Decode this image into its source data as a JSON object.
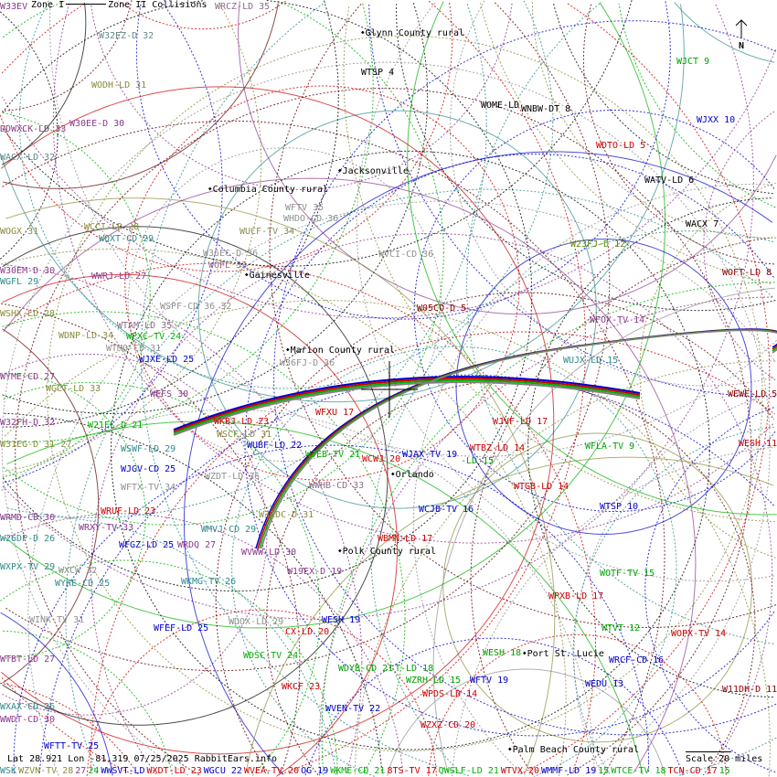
{
  "legend": {
    "zone1": "Zone I",
    "zone2": "Zone II Collisions"
  },
  "north": {
    "label": "N",
    "icon": "north-arrow-icon"
  },
  "readout": "Lat 28.921 Lon -81.319 07/25/2025 RabbitEars.info",
  "scale": "Scale 20 miles",
  "cities": [
    "Glynn County rural",
    "Jacksonville",
    "Columbia County rural",
    "Gainesville",
    "Marion County rural",
    "Orlando",
    "Polk County rural",
    "Port St. Lucie",
    "Palm Beach County rural"
  ],
  "stations": [
    {
      "text": "W33EV",
      "color": "#8b3a8b"
    },
    {
      "text": "WRCZ-LD 35",
      "color": "#8b6b8b"
    },
    {
      "text": "W32EZ-D 32",
      "color": "#5f8a8a"
    },
    {
      "text": "WODH-LD 31",
      "color": "#8b8b3c"
    },
    {
      "text": "W30EE-D 30",
      "color": "#8b3a8b"
    },
    {
      "text": "DDWXCK-LD 33",
      "color": "#8b3a8b"
    },
    {
      "text": "WACX-LD 32",
      "color": "#5f8a8a"
    },
    {
      "text": "WTSP 4",
      "color": "#000000"
    },
    {
      "text": "WOME-LD",
      "color": "#000000"
    },
    {
      "text": "WNBW-DT 8",
      "color": "#000000"
    },
    {
      "text": "WJCT 9",
      "color": "#00a000"
    },
    {
      "text": "WJXX 10",
      "color": "#0000cc"
    },
    {
      "text": "WDTO-LD 5",
      "color": "#cc0000"
    },
    {
      "text": "WATV-LD 6",
      "color": "#000000"
    },
    {
      "text": "WACX 7",
      "color": "#000000"
    },
    {
      "text": "WOFT-LD 8",
      "color": "#8b0000"
    },
    {
      "text": "W23FJ-D 12",
      "color": "#5a8a00"
    },
    {
      "text": "WFTV 35",
      "color": "#909090"
    },
    {
      "text": "WHDO-CD 36",
      "color": "#909090"
    },
    {
      "text": "WUCF-TV 34",
      "color": "#8b8b5c"
    },
    {
      "text": "WVCI-CD 36",
      "color": "#909090"
    },
    {
      "text": "W36EC-D 36",
      "color": "#909090"
    },
    {
      "text": "WOFL 33",
      "color": "#8b6b8b"
    },
    {
      "text": "WQXT-CD 29",
      "color": "#2e8b8b"
    },
    {
      "text": "WCCI-LD 28",
      "color": "#8b8b3c"
    },
    {
      "text": "WOGX 31",
      "color": "#8b8b3c"
    },
    {
      "text": "W30EM-D 30",
      "color": "#8b3a8b"
    },
    {
      "text": "WGFL 29",
      "color": "#2e8b8b"
    },
    {
      "text": "WWRJ-LD 27",
      "color": "#8b3a8b"
    },
    {
      "text": "WSPF-CD 36 32",
      "color": "#909090"
    },
    {
      "text": "WSHX-LD 28",
      "color": "#8b8b3c"
    },
    {
      "text": "W05CO-D 5",
      "color": "#8b0000"
    },
    {
      "text": "WFOX-TV 14",
      "color": "#8b3a8b"
    },
    {
      "text": "WTAM-LD 35",
      "color": "#8b6b8b"
    },
    {
      "text": "WPXC-TV 24",
      "color": "#00b000"
    },
    {
      "text": "WDNP-LD 34",
      "color": "#8b8b3c"
    },
    {
      "text": "WTMO-CD 31",
      "color": "#909090"
    },
    {
      "text": "WJXE-LD 25",
      "color": "#0000cc"
    },
    {
      "text": "W36FJ-D 36",
      "color": "#909090"
    },
    {
      "text": "WUJX-LD 15",
      "color": "#2e8b8b"
    },
    {
      "text": "WYME-CD 27",
      "color": "#8b3a8b"
    },
    {
      "text": "WGCT-LD 33",
      "color": "#8b8b3c"
    },
    {
      "text": "WEFS 30",
      "color": "#8b3a8b"
    },
    {
      "text": "WEWF-LD 5",
      "color": "#8b0000"
    },
    {
      "text": "WFXU 17",
      "color": "#cc0000"
    },
    {
      "text": "W32FH-D 32",
      "color": "#8b3a8b"
    },
    {
      "text": "WKBJ-LD 23",
      "color": "#cc0000"
    },
    {
      "text": "WJVF-LD 17",
      "color": "#cc0000"
    },
    {
      "text": "W21EL-D 21",
      "color": "#00b000"
    },
    {
      "text": "WSCF-LD 31",
      "color": "#8b8b3c"
    },
    {
      "text": "W31EG-D 31 27",
      "color": "#8b8b3c"
    },
    {
      "text": "WUBF-LD 22",
      "color": "#0000cc"
    },
    {
      "text": "WESH 11",
      "color": "#cc0000"
    },
    {
      "text": "WFLA-TV 9",
      "color": "#00a000"
    },
    {
      "text": "WSWF-LD 29",
      "color": "#2e8b8b"
    },
    {
      "text": "WTBZ-LD 14",
      "color": "#cc0000"
    },
    {
      "text": "WJEB-TV 21",
      "color": "#00b000"
    },
    {
      "text": "WCWJ 20",
      "color": "#cc0000"
    },
    {
      "text": "WJAX-TV 19",
      "color": "#0000cc"
    },
    {
      "text": "-LD 15",
      "color": "#00a000"
    },
    {
      "text": "WJGV-CD 25",
      "color": "#0000cc"
    },
    {
      "text": "WZDT-LD 36",
      "color": "#909090"
    },
    {
      "text": "WWHB-CD 33",
      "color": "#8b6b8b"
    },
    {
      "text": "WTGB-LD 14",
      "color": "#cc0000"
    },
    {
      "text": "WFTX-TV 34",
      "color": "#909090"
    },
    {
      "text": "WRUF-LD 23",
      "color": "#cc0000"
    },
    {
      "text": "WCJB-TV 16",
      "color": "#0000cc"
    },
    {
      "text": "WTSP 10",
      "color": "#0000cc"
    },
    {
      "text": "W31DC-D 31",
      "color": "#8b8b3c"
    },
    {
      "text": "WRMD-CD 30",
      "color": "#8b3a8b"
    },
    {
      "text": "WRXY-TV 33",
      "color": "#8b3a8b"
    },
    {
      "text": "WMVJ-CD 29",
      "color": "#2e8b8b"
    },
    {
      "text": "W26DP-D 26",
      "color": "#2e8b8b"
    },
    {
      "text": "WBMN-LD 17",
      "color": "#cc0000"
    },
    {
      "text": "WFGZ-LD 25",
      "color": "#0000cc"
    },
    {
      "text": "WRDQ 27",
      "color": "#8b3a8b"
    },
    {
      "text": "WVWW-LD 30",
      "color": "#8b3a8b"
    },
    {
      "text": "WXPX-TV 29",
      "color": "#2e8b8b"
    },
    {
      "text": "WXCW 32",
      "color": "#909090"
    },
    {
      "text": "W19EX-D 19",
      "color": "#8b3a8b"
    },
    {
      "text": "WOTF-TV 15",
      "color": "#00a000"
    },
    {
      "text": "WYKE-CD 25",
      "color": "#2e8b8b"
    },
    {
      "text": "WKMG-TV 26",
      "color": "#2e8b8b"
    },
    {
      "text": "WPXB-LD 17",
      "color": "#cc0000"
    },
    {
      "text": "WINK-TV 31",
      "color": "#909090"
    },
    {
      "text": "WDOX-LD 29",
      "color": "#909090"
    },
    {
      "text": "WESH 19",
      "color": "#0000cc"
    },
    {
      "text": "CX-LD 20",
      "color": "#cc0000"
    },
    {
      "text": "WFEF-LD 25",
      "color": "#0000cc"
    },
    {
      "text": "WTVT 12",
      "color": "#00a000"
    },
    {
      "text": "WOPX-TV 14",
      "color": "#cc0000"
    },
    {
      "text": "WTBT-LD 27",
      "color": "#8b3a8b"
    },
    {
      "text": "WDSC-TV 24",
      "color": "#00b000"
    },
    {
      "text": "WESH 18",
      "color": "#00a000"
    },
    {
      "text": "WRCF-CD 16",
      "color": "#0000cc"
    },
    {
      "text": "WDYB-CD 21",
      "color": "#00a000"
    },
    {
      "text": "T-LD 18",
      "color": "#00a000"
    },
    {
      "text": "WZRH-LD 15",
      "color": "#00a000"
    },
    {
      "text": "WFTV 19",
      "color": "#0000cc"
    },
    {
      "text": "WEDU 13",
      "color": "#0000cc"
    },
    {
      "text": "WKCF 23",
      "color": "#cc0000"
    },
    {
      "text": "WPDS-LD 14",
      "color": "#cc0000"
    },
    {
      "text": "W11DH-D 11",
      "color": "#8b0000"
    },
    {
      "text": "WXAX-CD 26",
      "color": "#2e8b8b"
    },
    {
      "text": "WVEN-TV 22",
      "color": "#0000cc"
    },
    {
      "text": "WWDT-CD 30",
      "color": "#8b3a8b"
    },
    {
      "text": "WZXZ-CD 20",
      "color": "#cc0000"
    },
    {
      "text": "WFTT-TV 25",
      "color": "#0000cc"
    }
  ],
  "bottom_row": [
    {
      "text": "WSK",
      "color": "#2e8b8b"
    },
    {
      "text": "WZVN-TV 28",
      "color": "#8b8b3c"
    },
    {
      "text": "27",
      "color": "#8b3a8b"
    },
    {
      "text": "24",
      "color": "#00b000"
    },
    {
      "text": "WWSVT-LD",
      "color": "#0000cc"
    },
    {
      "text": "WXDT-LD 23",
      "color": "#cc0000"
    },
    {
      "text": "WGCU 22",
      "color": "#0000cc"
    },
    {
      "text": "WVEA-TV 20",
      "color": "#cc0000"
    },
    {
      "text": "OG 19",
      "color": "#0000cc"
    },
    {
      "text": "WKME-CD 21",
      "color": "#00b000"
    },
    {
      "text": "8TS-TV 17",
      "color": "#cc0000"
    },
    {
      "text": "QWSLF-LD 21",
      "color": "#00b000"
    },
    {
      "text": "WTVX 20",
      "color": "#cc0000"
    },
    {
      "text": "WMMF-LD 19",
      "color": "#0000cc"
    },
    {
      "text": "15",
      "color": "#00a000"
    },
    {
      "text": "WTCE-TV 18",
      "color": "#00b000"
    },
    {
      "text": "TCN-CD 17",
      "color": "#cc0000"
    },
    {
      "text": "15",
      "color": "#00a000"
    }
  ]
}
